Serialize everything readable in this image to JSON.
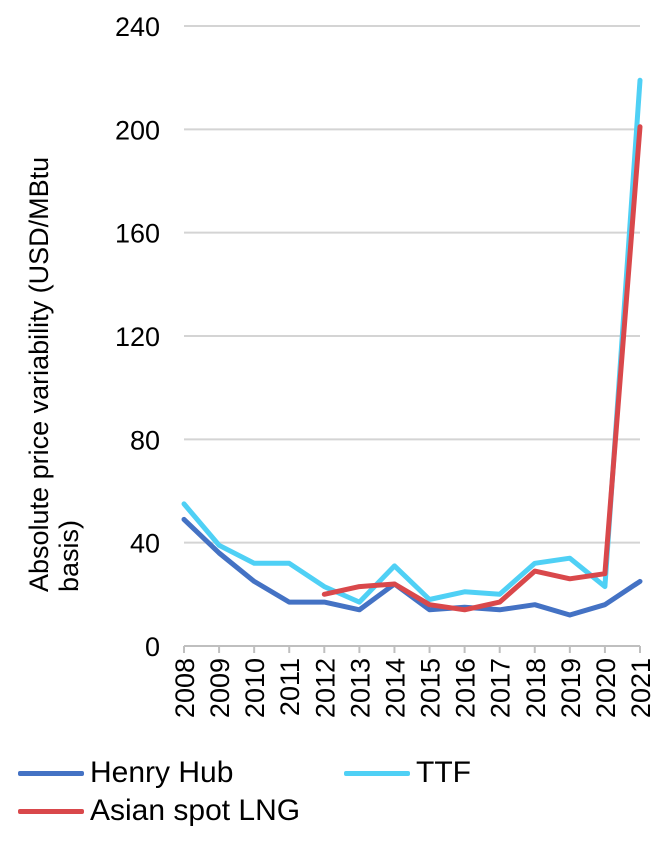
{
  "chart_data": {
    "type": "line",
    "title": "",
    "xlabel": "",
    "ylabel": "Absolute price variability (USD/MBtu basis)",
    "ylabel_lines": [
      "Absolute price variability (USD/MBtu",
      "basis)"
    ],
    "ylim": [
      0,
      240
    ],
    "yticks": [
      "0",
      "40",
      "80",
      "120",
      "160",
      "200",
      "240"
    ],
    "grid": true,
    "legend_position": "bottom",
    "x": [
      "2008",
      "2009",
      "2010",
      "2011",
      "2012",
      "2013",
      "2014",
      "2015",
      "2016",
      "2017",
      "2018",
      "2019",
      "2020",
      "2021"
    ],
    "series": [
      {
        "name": "Henry Hub",
        "color": "#4472C4",
        "values": [
          49,
          36,
          25,
          17,
          17,
          14,
          24,
          14,
          15,
          14,
          16,
          12,
          16,
          25
        ]
      },
      {
        "name": "TTF",
        "color": "#4FD0F5",
        "values": [
          55,
          39,
          32,
          32,
          23,
          17,
          31,
          18,
          21,
          20,
          32,
          34,
          23,
          219
        ]
      },
      {
        "name": "Asian spot LNG",
        "color": "#D9484B",
        "values": [
          null,
          null,
          null,
          null,
          20,
          23,
          24,
          16,
          14,
          17,
          29,
          26,
          28,
          201
        ]
      }
    ]
  }
}
